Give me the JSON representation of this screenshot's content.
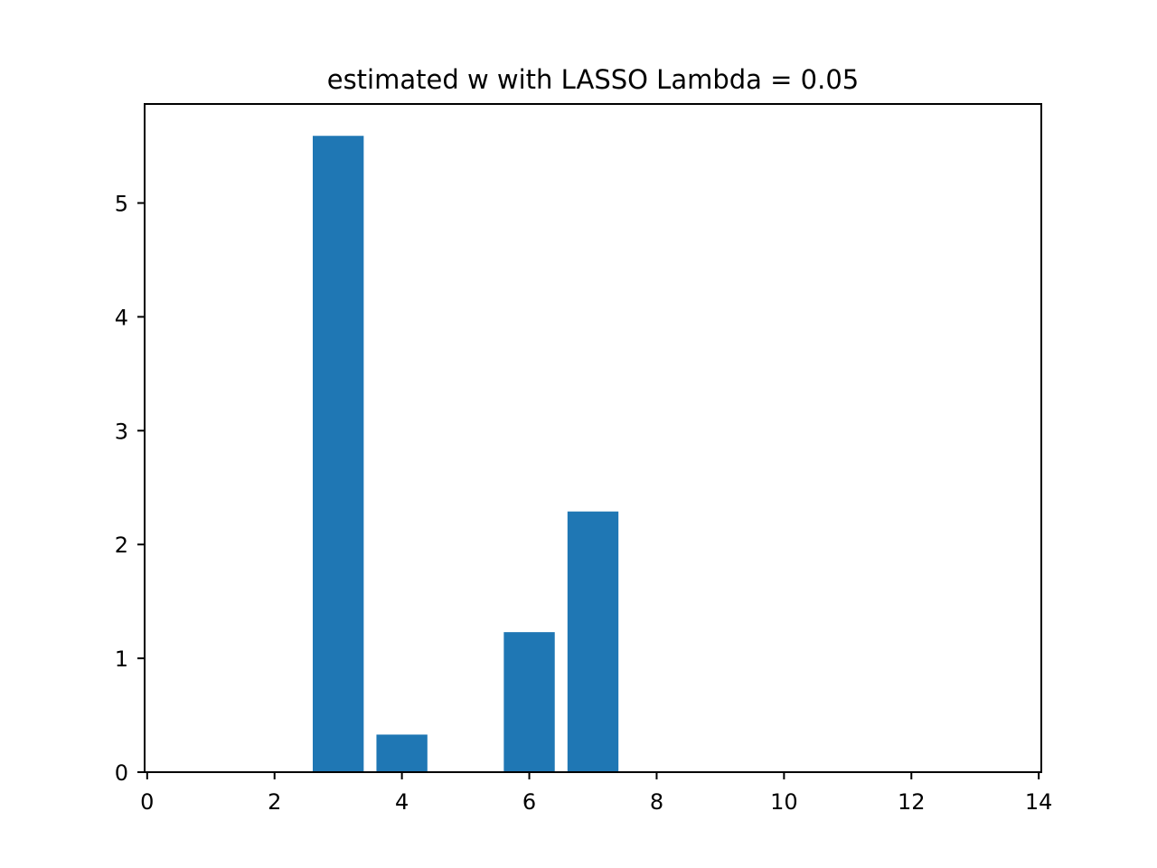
{
  "chart_data": {
    "type": "bar",
    "title": "estimated w with LASSO Lambda = 0.05",
    "xlabel": "",
    "ylabel": "",
    "x": [
      0,
      1,
      2,
      3,
      4,
      5,
      6,
      7,
      8,
      9,
      10,
      11,
      12,
      13,
      14
    ],
    "values": [
      0,
      0,
      0,
      5.59,
      0.33,
      0,
      1.23,
      2.29,
      0,
      0,
      0,
      0,
      0,
      0,
      0
    ],
    "bar_width": 0.8,
    "color": "#1f77b4",
    "xlim": [
      -0.04,
      14.04
    ],
    "ylim": [
      0,
      5.87
    ],
    "xticks": [
      0,
      2,
      4,
      6,
      8,
      10,
      12,
      14
    ],
    "xtick_labels": [
      "0",
      "2",
      "4",
      "6",
      "8",
      "10",
      "12",
      "14"
    ],
    "yticks": [
      0,
      1,
      2,
      3,
      4,
      5
    ],
    "ytick_labels": [
      "0",
      "1",
      "2",
      "3",
      "4",
      "5"
    ],
    "grid": false,
    "legend": "none"
  }
}
